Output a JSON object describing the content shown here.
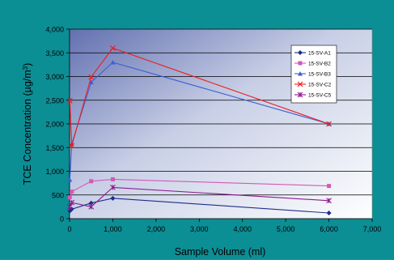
{
  "chart_data": {
    "type": "scatter",
    "title": "",
    "xlabel": "Sample Volume (ml)",
    "ylabel_main": "TCE Concentration (µg/m",
    "ylabel_sup": "3",
    "ylabel_close": ")",
    "xlim": [
      0,
      7000
    ],
    "ylim": [
      0,
      4000
    ],
    "x_ticks": [
      0,
      1000,
      2000,
      3000,
      4000,
      5000,
      6000,
      7000
    ],
    "x_tick_labels": [
      "0",
      "1,000",
      "2,000",
      "3,000",
      "4,000",
      "5,000",
      "6,000",
      "7,000"
    ],
    "y_ticks": [
      0,
      500,
      1000,
      1500,
      2000,
      2500,
      3000,
      3500,
      4000
    ],
    "y_tick_labels": [
      "0",
      "500",
      "1,000",
      "1,500",
      "2,000",
      "2,500",
      "3,000",
      "3,500",
      "4,000"
    ],
    "grid": "horizontal",
    "legend_position": "top-right",
    "colors": {
      "frame_bg": "#0c8e95",
      "plot_top": "#6270b0",
      "plot_bottom": "#ffffff",
      "gridline": "#000000"
    },
    "series": [
      {
        "name": "15-SV-A1",
        "color": "#1f2c8a",
        "marker": "diamond",
        "x": [
          5,
          50,
          500,
          1000,
          6000
        ],
        "y": [
          160,
          200,
          330,
          430,
          120
        ]
      },
      {
        "name": "15-SV-B2",
        "color": "#d259b5",
        "marker": "square",
        "x": [
          5,
          50,
          500,
          1000,
          6000
        ],
        "y": [
          450,
          570,
          790,
          830,
          690
        ]
      },
      {
        "name": "15-SV-B3",
        "color": "#3e5fd4",
        "marker": "triangle",
        "x": [
          5,
          50,
          500,
          1000,
          6000
        ],
        "y": [
          820,
          1580,
          2880,
          3300,
          2000
        ]
      },
      {
        "name": "15-SV-C2",
        "color": "#ee1c1c",
        "marker": "x",
        "x": [
          5,
          50,
          500,
          1000,
          6000
        ],
        "y": [
          2490,
          1540,
          2990,
          3600,
          2000
        ]
      },
      {
        "name": "15-SV-C5",
        "color": "#8b1a8b",
        "marker": "star",
        "x": [
          5,
          50,
          500,
          1000,
          6000
        ],
        "y": [
          250,
          340,
          250,
          660,
          380
        ]
      }
    ]
  }
}
